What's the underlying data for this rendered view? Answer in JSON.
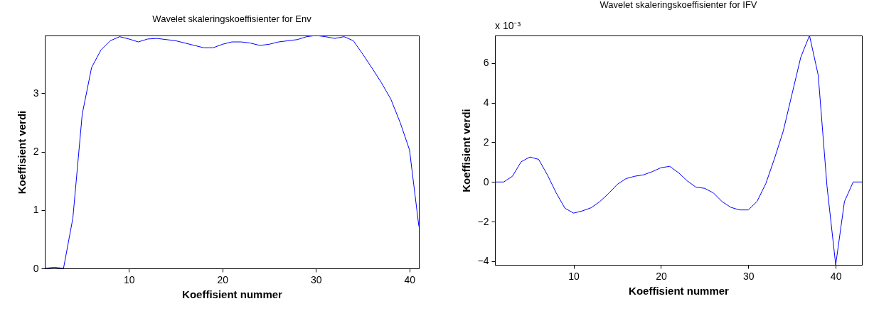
{
  "chart_data": [
    {
      "type": "line",
      "title": "Wavelet skaleringskoeffisienter for Env",
      "xlabel": "Koeffisient nummer",
      "ylabel": "Koeffisient verdi",
      "xlim": [
        1,
        41
      ],
      "xticks": [
        10,
        20,
        30,
        40
      ],
      "ylim": [
        0,
        3.99
      ],
      "yticks": [
        0,
        1,
        2,
        3
      ],
      "x": [
        1,
        2,
        3,
        4,
        5,
        6,
        7,
        8,
        9,
        10,
        11,
        12,
        13,
        14,
        15,
        16,
        17,
        18,
        19,
        20,
        21,
        22,
        23,
        24,
        25,
        26,
        27,
        28,
        29,
        30,
        31,
        32,
        33,
        34,
        35,
        36,
        37,
        38,
        39,
        40,
        41
      ],
      "series": [
        {
          "color": "#0000ff",
          "values": [
            0,
            0.02,
            0,
            0.86,
            2.64,
            3.44,
            3.74,
            3.9,
            3.97,
            3.93,
            3.88,
            3.93,
            3.94,
            3.92,
            3.9,
            3.86,
            3.82,
            3.78,
            3.78,
            3.84,
            3.88,
            3.88,
            3.86,
            3.82,
            3.84,
            3.88,
            3.9,
            3.92,
            3.97,
            3.99,
            3.97,
            3.94,
            3.97,
            3.9,
            3.67,
            3.43,
            3.18,
            2.9,
            2.5,
            2.03,
            0.72
          ]
        }
      ]
    },
    {
      "type": "line",
      "title": "Wavelet skaleringskoeffisienter for IFV",
      "xlabel": "Koeffisient nummer",
      "ylabel": "Koeffisient verdi",
      "annotations": [
        "x 10⁻³"
      ],
      "xlim": [
        1,
        43
      ],
      "xticks": [
        10,
        20,
        30,
        40
      ],
      "ylim": [
        -4.18,
        7.39
      ],
      "yticks": [
        -4,
        -2,
        0,
        2,
        4,
        6
      ],
      "x": [
        1,
        2,
        3,
        4,
        5,
        6,
        7,
        8,
        9,
        10,
        11,
        12,
        13,
        14,
        15,
        16,
        17,
        18,
        19,
        20,
        21,
        22,
        23,
        24,
        25,
        26,
        27,
        28,
        29,
        30,
        31,
        32,
        33,
        34,
        35,
        36,
        37,
        38,
        39,
        40,
        41,
        42,
        43
      ],
      "series": [
        {
          "color": "#0000ff",
          "values": [
            0,
            0,
            0.29,
            1.02,
            1.26,
            1.14,
            0.36,
            -0.54,
            -1.32,
            -1.57,
            -1.46,
            -1.3,
            -0.99,
            -0.58,
            -0.12,
            0.17,
            0.29,
            0.36,
            0.52,
            0.72,
            0.79,
            0.47,
            0.06,
            -0.26,
            -0.32,
            -0.55,
            -0.99,
            -1.28,
            -1.41,
            -1.41,
            -0.98,
            -0.08,
            1.19,
            2.57,
            4.43,
            6.29,
            7.39,
            5.39,
            -0.19,
            -4.18,
            -0.99,
            0,
            0
          ]
        }
      ]
    }
  ]
}
